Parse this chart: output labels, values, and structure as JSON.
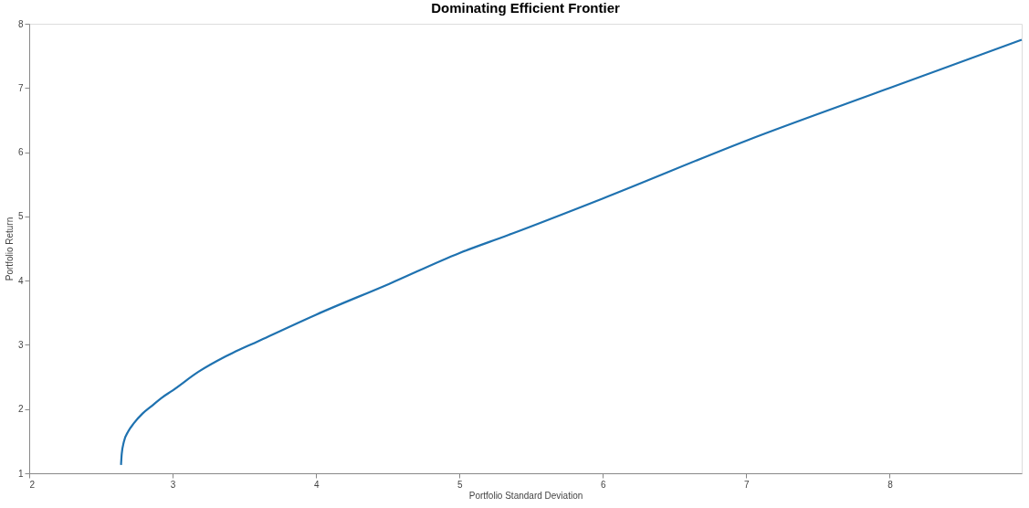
{
  "chart_data": {
    "type": "line",
    "title": "Dominating Efficient Frontier",
    "xlabel": "Portfolio Standard Deviation",
    "ylabel": "Portfolio Return",
    "series": [
      {
        "color": "#1f72b0",
        "x": [
          2.64,
          2.645,
          2.66,
          2.69,
          2.73,
          2.79,
          2.85,
          2.92,
          3.0,
          3.18,
          3.37,
          3.6,
          4.0,
          4.51,
          5.0,
          5.34,
          6.0,
          7.0,
          8.0,
          8.92
        ],
        "values": [
          1.13,
          1.3,
          1.49,
          1.65,
          1.78,
          1.93,
          2.04,
          2.17,
          2.29,
          2.58,
          2.82,
          3.06,
          3.47,
          3.95,
          4.43,
          4.71,
          5.28,
          6.18,
          7.0,
          7.75
        ]
      }
    ],
    "xlim": [
      2,
      8.92
    ],
    "xticks": [
      2,
      3,
      4,
      5,
      6,
      7,
      8
    ],
    "ylim": [
      1,
      8
    ],
    "yticks": [
      1,
      2,
      3,
      4,
      5,
      6,
      7,
      8
    ],
    "grid": false,
    "line_style": "solid",
    "marker": "none"
  }
}
